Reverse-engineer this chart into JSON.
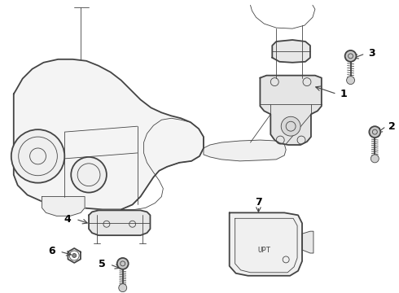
{
  "bg_color": "#ffffff",
  "line_color": "#444444",
  "label_color": "#000000",
  "fig_width": 4.9,
  "fig_height": 3.6,
  "dpi": 100,
  "lw": 1.0,
  "lw_thin": 0.6,
  "lw_thick": 1.3,
  "font_size": 9
}
